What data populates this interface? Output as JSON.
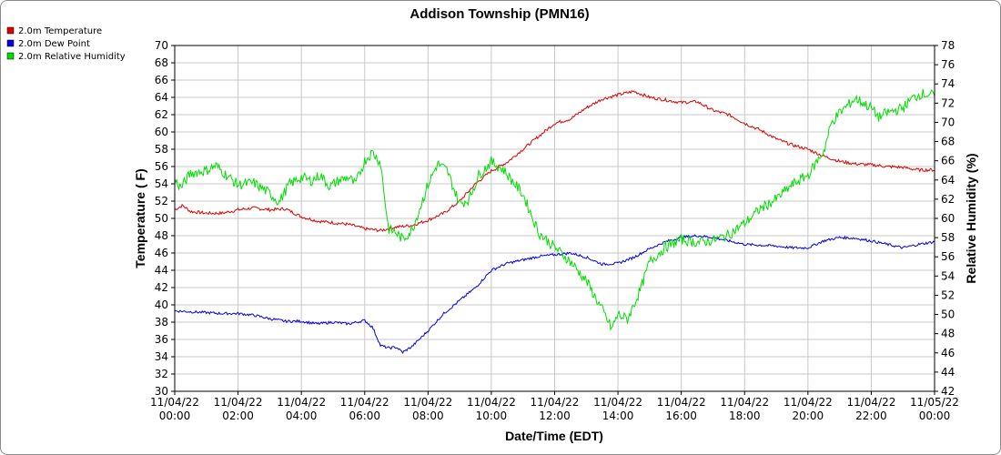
{
  "chart_data": {
    "type": "line",
    "title": "Addison Township (PMN16)",
    "xlabel": "Date/Time (EDT)",
    "ylabel_left": "Temperature ( F)",
    "ylabel_right": "Relative Humidity (%)",
    "ylim_left": [
      30,
      70
    ],
    "ylim_right": [
      42,
      78
    ],
    "left_ticks": [
      30,
      32,
      34,
      36,
      38,
      40,
      42,
      44,
      46,
      48,
      50,
      52,
      54,
      56,
      58,
      60,
      62,
      64,
      66,
      68,
      70
    ],
    "right_ticks": [
      42,
      44,
      46,
      48,
      50,
      52,
      54,
      56,
      58,
      60,
      62,
      64,
      66,
      68,
      70,
      72,
      74,
      76,
      78
    ],
    "x_ticks": [
      {
        "h": 0,
        "date": "11/04/22",
        "time": "00:00"
      },
      {
        "h": 2,
        "date": "11/04/22",
        "time": "02:00"
      },
      {
        "h": 4,
        "date": "11/04/22",
        "time": "04:00"
      },
      {
        "h": 6,
        "date": "11/04/22",
        "time": "06:00"
      },
      {
        "h": 8,
        "date": "11/04/22",
        "time": "08:00"
      },
      {
        "h": 10,
        "date": "11/04/22",
        "time": "10:00"
      },
      {
        "h": 12,
        "date": "11/04/22",
        "time": "12:00"
      },
      {
        "h": 14,
        "date": "11/04/22",
        "time": "14:00"
      },
      {
        "h": 16,
        "date": "11/04/22",
        "time": "16:00"
      },
      {
        "h": 18,
        "date": "11/04/22",
        "time": "18:00"
      },
      {
        "h": 20,
        "date": "11/04/22",
        "time": "20:00"
      },
      {
        "h": 22,
        "date": "11/04/22",
        "time": "22:00"
      },
      {
        "h": 24,
        "date": "11/05/22",
        "time": "00:00"
      }
    ],
    "grid": true,
    "legend_position": "top-left",
    "series": [
      {
        "name": "2.0m Temperature",
        "color": "#dd0000",
        "axis": "left",
        "points": [
          [
            0,
            51.0
          ],
          [
            0.25,
            51.5
          ],
          [
            0.5,
            50.8
          ],
          [
            1,
            50.6
          ],
          [
            1.5,
            50.6
          ],
          [
            2,
            51.0
          ],
          [
            2.5,
            51.2
          ],
          [
            3,
            51.0
          ],
          [
            3.5,
            51.1
          ],
          [
            4,
            50.2
          ],
          [
            4.5,
            49.7
          ],
          [
            5,
            49.5
          ],
          [
            5.5,
            49.3
          ],
          [
            6,
            48.8
          ],
          [
            6.5,
            48.6
          ],
          [
            7,
            49.0
          ],
          [
            7.5,
            49.2
          ],
          [
            8,
            49.8
          ],
          [
            8.5,
            50.6
          ],
          [
            9,
            52.0
          ],
          [
            9.5,
            54.0
          ],
          [
            10,
            55.5
          ],
          [
            10.5,
            56.5
          ],
          [
            11,
            58.0
          ],
          [
            11.5,
            59.5
          ],
          [
            12,
            61.0
          ],
          [
            12.5,
            61.5
          ],
          [
            13,
            62.8
          ],
          [
            13.5,
            63.8
          ],
          [
            14,
            64.3
          ],
          [
            14.5,
            64.7
          ],
          [
            15,
            64.0
          ],
          [
            15.5,
            63.7
          ],
          [
            16,
            63.4
          ],
          [
            16.5,
            63.5
          ],
          [
            17,
            62.5
          ],
          [
            17.5,
            62.0
          ],
          [
            18,
            61.0
          ],
          [
            18.5,
            60.2
          ],
          [
            19,
            59.2
          ],
          [
            19.5,
            58.5
          ],
          [
            20,
            58.0
          ],
          [
            20.5,
            57.2
          ],
          [
            21,
            56.6
          ],
          [
            21.5,
            56.3
          ],
          [
            22,
            56.2
          ],
          [
            22.5,
            56.0
          ],
          [
            23,
            55.9
          ],
          [
            23.5,
            55.6
          ],
          [
            24,
            55.6
          ]
        ]
      },
      {
        "name": "2.0m Dew Point",
        "color": "#0000dd",
        "axis": "left",
        "points": [
          [
            0,
            39.3
          ],
          [
            0.5,
            39.2
          ],
          [
            1,
            39.1
          ],
          [
            1.5,
            39.0
          ],
          [
            2,
            39.0
          ],
          [
            2.5,
            38.8
          ],
          [
            3,
            38.4
          ],
          [
            3.5,
            38.1
          ],
          [
            4,
            38.1
          ],
          [
            4.5,
            37.8
          ],
          [
            5,
            38.0
          ],
          [
            5.5,
            37.8
          ],
          [
            6,
            38.2
          ],
          [
            6.25,
            37.4
          ],
          [
            6.5,
            35.3
          ],
          [
            6.75,
            35.0
          ],
          [
            7,
            35.1
          ],
          [
            7.2,
            34.5
          ],
          [
            7.5,
            35.2
          ],
          [
            8,
            37.0
          ],
          [
            8.5,
            39.0
          ],
          [
            9,
            40.5
          ],
          [
            9.5,
            42.0
          ],
          [
            10,
            44.0
          ],
          [
            10.5,
            44.8
          ],
          [
            11,
            45.2
          ],
          [
            11.5,
            45.6
          ],
          [
            12,
            45.8
          ],
          [
            12.5,
            46.0
          ],
          [
            13,
            45.5
          ],
          [
            13.5,
            44.7
          ],
          [
            14,
            44.8
          ],
          [
            14.5,
            45.5
          ],
          [
            15,
            46.5
          ],
          [
            15.5,
            47.3
          ],
          [
            16,
            47.8
          ],
          [
            16.5,
            48.0
          ],
          [
            17,
            47.8
          ],
          [
            17.5,
            47.4
          ],
          [
            18,
            47.0
          ],
          [
            18.5,
            46.9
          ],
          [
            19,
            46.8
          ],
          [
            19.5,
            46.6
          ],
          [
            20,
            46.6
          ],
          [
            20.5,
            47.4
          ],
          [
            21,
            47.8
          ],
          [
            21.5,
            47.7
          ],
          [
            22,
            47.4
          ],
          [
            22.5,
            47.0
          ],
          [
            23,
            46.6
          ],
          [
            23.5,
            47.0
          ],
          [
            24,
            47.3
          ]
        ]
      },
      {
        "name": "2.0m Relative Humidity",
        "color": "#00dd00",
        "axis": "right",
        "points": [
          [
            0,
            64.0
          ],
          [
            0.2,
            63.2
          ],
          [
            0.5,
            64.7
          ],
          [
            1,
            65.0
          ],
          [
            1.3,
            65.5
          ],
          [
            1.7,
            64.3
          ],
          [
            2,
            63.5
          ],
          [
            2.5,
            63.7
          ],
          [
            3,
            62.6
          ],
          [
            3.3,
            61.7
          ],
          [
            3.6,
            63.5
          ],
          [
            4,
            64.3
          ],
          [
            4.3,
            63.9
          ],
          [
            4.6,
            64.5
          ],
          [
            4.9,
            63.3
          ],
          [
            5.2,
            64.0
          ],
          [
            5.5,
            64.3
          ],
          [
            5.7,
            63.5
          ],
          [
            6,
            66.0
          ],
          [
            6.25,
            66.9
          ],
          [
            6.5,
            65.8
          ],
          [
            6.75,
            58.9
          ],
          [
            7,
            58.5
          ],
          [
            7.2,
            57.8
          ],
          [
            7.5,
            58.8
          ],
          [
            8,
            63.5
          ],
          [
            8.3,
            65.7
          ],
          [
            8.6,
            65.0
          ],
          [
            9,
            61.5
          ],
          [
            9.3,
            62.0
          ],
          [
            9.6,
            64.5
          ],
          [
            10,
            65.9
          ],
          [
            10.4,
            65.0
          ],
          [
            11,
            62.5
          ],
          [
            11.5,
            58.5
          ],
          [
            12,
            57.0
          ],
          [
            12.5,
            55.5
          ],
          [
            13,
            53.5
          ],
          [
            13.5,
            50.5
          ],
          [
            13.8,
            48.5
          ],
          [
            14,
            50.0
          ],
          [
            14.3,
            49.5
          ],
          [
            14.7,
            52.5
          ],
          [
            15,
            55.5
          ],
          [
            15.5,
            57.0
          ],
          [
            16,
            57.8
          ],
          [
            16.5,
            57.5
          ],
          [
            17,
            57.7
          ],
          [
            17.5,
            58.3
          ],
          [
            18,
            59.5
          ],
          [
            18.5,
            61.0
          ],
          [
            19,
            62.0
          ],
          [
            19.5,
            63.5
          ],
          [
            20,
            64.5
          ],
          [
            20.5,
            67.0
          ],
          [
            20.75,
            70.0
          ],
          [
            21,
            71.0
          ],
          [
            21.5,
            72.5
          ],
          [
            22,
            71.5
          ],
          [
            22.25,
            70.5
          ],
          [
            22.5,
            71.0
          ],
          [
            23,
            71.5
          ],
          [
            23.3,
            72.5
          ],
          [
            23.6,
            73.0
          ],
          [
            24,
            72.8
          ]
        ]
      }
    ]
  }
}
